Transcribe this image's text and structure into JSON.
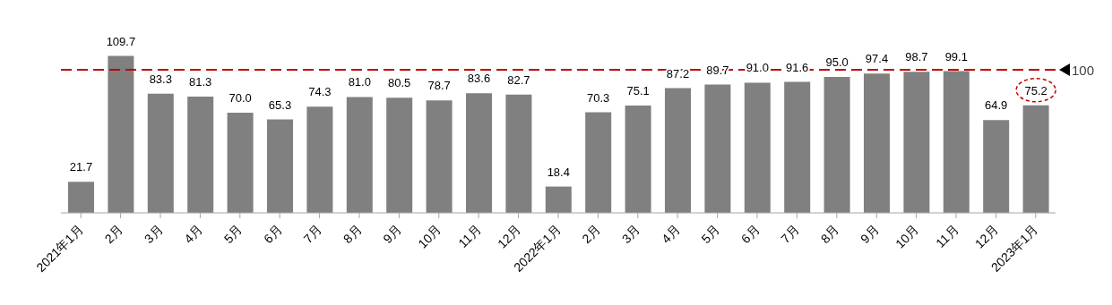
{
  "chart_data": {
    "type": "bar",
    "categories": [
      "2021年1月",
      "2月",
      "3月",
      "4月",
      "5月",
      "6月",
      "7月",
      "8月",
      "9月",
      "10月",
      "11月",
      "12月",
      "2022年1月",
      "2月",
      "3月",
      "4月",
      "5月",
      "6月",
      "7月",
      "8月",
      "9月",
      "10月",
      "11月",
      "12月",
      "2023年1月"
    ],
    "values": [
      21.7,
      109.7,
      83.3,
      81.3,
      70.0,
      65.3,
      74.3,
      81.0,
      80.5,
      78.7,
      83.6,
      82.7,
      18.4,
      70.3,
      75.1,
      87.2,
      89.7,
      91.0,
      91.6,
      95.0,
      97.4,
      98.7,
      99.1,
      64.9,
      75.2
    ],
    "color": "#808080",
    "value_labels": [
      "21.7",
      "109.7",
      "83.3",
      "81.3",
      "70.0",
      "65.3",
      "74.3",
      "81.0",
      "80.5",
      "78.7",
      "83.6",
      "82.7",
      "18.4",
      "70.3",
      "75.1",
      "87.2",
      "89.7",
      "91.0",
      "91.6",
      "95.0",
      "97.4",
      "98.7",
      "99.1",
      "64.9",
      "75.2"
    ],
    "ref_lines": [
      {
        "axis": "y",
        "value": 100,
        "label": "100",
        "color": "#c00000",
        "line_style": "dashed"
      }
    ],
    "grid": false,
    "legend": false
  }
}
